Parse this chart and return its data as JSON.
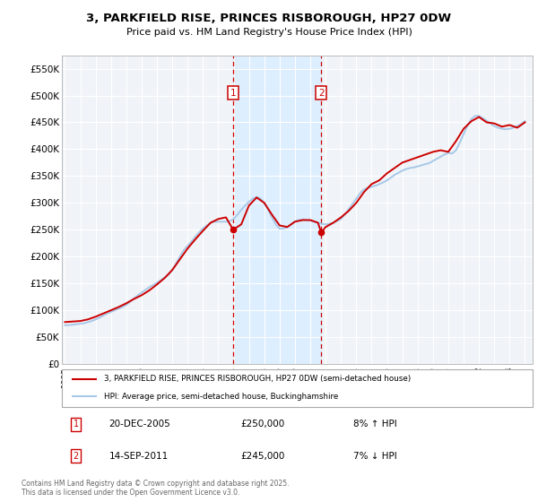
{
  "title": "3, PARKFIELD RISE, PRINCES RISBOROUGH, HP27 0DW",
  "subtitle": "Price paid vs. HM Land Registry's House Price Index (HPI)",
  "ylim": [
    0,
    575000
  ],
  "yticks": [
    0,
    50000,
    100000,
    150000,
    200000,
    250000,
    300000,
    350000,
    400000,
    450000,
    500000,
    550000
  ],
  "ytick_labels": [
    "£0",
    "£50K",
    "£100K",
    "£150K",
    "£200K",
    "£250K",
    "£300K",
    "£350K",
    "£400K",
    "£450K",
    "£500K",
    "£550K"
  ],
  "hpi_color": "#a8c8e8",
  "price_color": "#cc0000",
  "shaded_color": "#ddeeff",
  "marker1_x": 2005.97,
  "marker1_y": 250000,
  "marker2_x": 2011.71,
  "marker2_y": 245000,
  "annotation1": [
    "1",
    "20-DEC-2005",
    "£250,000",
    "8% ↑ HPI"
  ],
  "annotation2": [
    "2",
    "14-SEP-2011",
    "£245,000",
    "7% ↓ HPI"
  ],
  "legend_line1": "3, PARKFIELD RISE, PRINCES RISBOROUGH, HP27 0DW (semi-detached house)",
  "legend_line2": "HPI: Average price, semi-detached house, Buckinghamshire",
  "footer": "Contains HM Land Registry data © Crown copyright and database right 2025.\nThis data is licensed under the Open Government Licence v3.0.",
  "hpi_data_years": [
    1995.0,
    1995.25,
    1995.5,
    1995.75,
    1996.0,
    1996.25,
    1996.5,
    1996.75,
    1997.0,
    1997.25,
    1997.5,
    1997.75,
    1998.0,
    1998.25,
    1998.5,
    1998.75,
    1999.0,
    1999.25,
    1999.5,
    1999.75,
    2000.0,
    2000.25,
    2000.5,
    2000.75,
    2001.0,
    2001.25,
    2001.5,
    2001.75,
    2002.0,
    2002.25,
    2002.5,
    2002.75,
    2003.0,
    2003.25,
    2003.5,
    2003.75,
    2004.0,
    2004.25,
    2004.5,
    2004.75,
    2005.0,
    2005.25,
    2005.5,
    2005.75,
    2006.0,
    2006.25,
    2006.5,
    2006.75,
    2007.0,
    2007.25,
    2007.5,
    2007.75,
    2008.0,
    2008.25,
    2008.5,
    2008.75,
    2009.0,
    2009.25,
    2009.5,
    2009.75,
    2010.0,
    2010.25,
    2010.5,
    2010.75,
    2011.0,
    2011.25,
    2011.5,
    2011.75,
    2012.0,
    2012.25,
    2012.5,
    2012.75,
    2013.0,
    2013.25,
    2013.5,
    2013.75,
    2014.0,
    2014.25,
    2014.5,
    2014.75,
    2015.0,
    2015.25,
    2015.5,
    2015.75,
    2016.0,
    2016.25,
    2016.5,
    2016.75,
    2017.0,
    2017.25,
    2017.5,
    2017.75,
    2018.0,
    2018.25,
    2018.5,
    2018.75,
    2019.0,
    2019.25,
    2019.5,
    2019.75,
    2020.0,
    2020.25,
    2020.5,
    2020.75,
    2021.0,
    2021.25,
    2021.5,
    2021.75,
    2022.0,
    2022.25,
    2022.5,
    2022.75,
    2023.0,
    2023.25,
    2023.5,
    2023.75,
    2024.0,
    2024.25,
    2024.5,
    2024.75,
    2025.0
  ],
  "hpi_data_vals": [
    72000,
    72500,
    73000,
    74000,
    75000,
    76000,
    78000,
    80000,
    83000,
    86000,
    90000,
    94000,
    97000,
    100000,
    103000,
    106000,
    110000,
    116000,
    122000,
    128000,
    133000,
    138000,
    143000,
    147000,
    151000,
    156000,
    161000,
    166000,
    175000,
    187000,
    200000,
    212000,
    220000,
    228000,
    237000,
    245000,
    252000,
    258000,
    263000,
    265000,
    265000,
    265000,
    265000,
    266000,
    270000,
    278000,
    287000,
    295000,
    302000,
    308000,
    311000,
    308000,
    300000,
    288000,
    273000,
    260000,
    252000,
    252000,
    255000,
    260000,
    265000,
    268000,
    269000,
    268000,
    267000,
    265000,
    263000,
    261000,
    260000,
    261000,
    263000,
    266000,
    270000,
    278000,
    288000,
    298000,
    308000,
    318000,
    325000,
    328000,
    330000,
    332000,
    335000,
    338000,
    342000,
    347000,
    352000,
    356000,
    360000,
    363000,
    365000,
    366000,
    368000,
    370000,
    372000,
    374000,
    378000,
    382000,
    386000,
    390000,
    393000,
    392000,
    398000,
    412000,
    428000,
    444000,
    456000,
    462000,
    462000,
    458000,
    453000,
    448000,
    443000,
    440000,
    438000,
    437000,
    438000,
    440000,
    443000,
    447000,
    452000
  ],
  "price_data_years": [
    1995.0,
    1995.5,
    1996.0,
    1996.5,
    1997.0,
    1997.5,
    1998.0,
    1998.5,
    1999.0,
    1999.5,
    2000.0,
    2000.5,
    2001.0,
    2001.5,
    2002.0,
    2002.5,
    2003.0,
    2003.5,
    2004.0,
    2004.5,
    2005.0,
    2005.5,
    2005.97,
    2006.5,
    2007.0,
    2007.5,
    2008.0,
    2008.5,
    2009.0,
    2009.5,
    2010.0,
    2010.5,
    2011.0,
    2011.5,
    2011.71,
    2012.0,
    2012.5,
    2013.0,
    2013.5,
    2014.0,
    2014.5,
    2015.0,
    2015.5,
    2016.0,
    2016.5,
    2017.0,
    2017.5,
    2018.0,
    2018.5,
    2019.0,
    2019.5,
    2020.0,
    2020.5,
    2021.0,
    2021.5,
    2022.0,
    2022.5,
    2023.0,
    2023.5,
    2024.0,
    2024.5,
    2025.0
  ],
  "price_data_vals": [
    78000,
    79000,
    80000,
    83000,
    88000,
    94000,
    100000,
    106000,
    113000,
    121000,
    128000,
    137000,
    148000,
    160000,
    175000,
    195000,
    215000,
    232000,
    248000,
    263000,
    270000,
    273000,
    250000,
    260000,
    295000,
    310000,
    300000,
    278000,
    258000,
    255000,
    265000,
    268000,
    268000,
    263000,
    245000,
    255000,
    263000,
    273000,
    285000,
    300000,
    320000,
    335000,
    342000,
    355000,
    365000,
    375000,
    380000,
    385000,
    390000,
    395000,
    398000,
    395000,
    415000,
    438000,
    452000,
    460000,
    450000,
    448000,
    442000,
    445000,
    440000,
    450000
  ],
  "xlim": [
    1994.8,
    2025.5
  ],
  "xticks": [
    1995,
    1996,
    1997,
    1998,
    1999,
    2000,
    2001,
    2002,
    2003,
    2004,
    2005,
    2006,
    2007,
    2008,
    2009,
    2010,
    2011,
    2012,
    2013,
    2014,
    2015,
    2016,
    2017,
    2018,
    2019,
    2020,
    2021,
    2022,
    2023,
    2024,
    2025
  ],
  "bg_color": "#f0f4f8"
}
